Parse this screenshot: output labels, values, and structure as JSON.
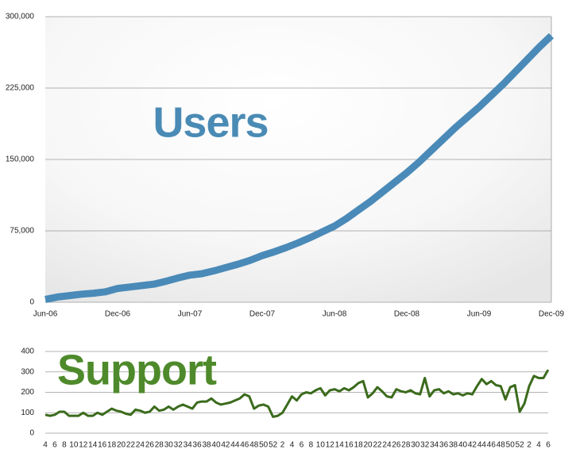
{
  "chart_data": [
    {
      "type": "line",
      "title": "Users",
      "categories": [
        "Jun-06",
        null,
        null,
        null,
        null,
        null,
        "Dec-06",
        null,
        null,
        null,
        null,
        null,
        "Jun-07",
        null,
        null,
        null,
        null,
        null,
        "Dec-07",
        null,
        null,
        null,
        null,
        null,
        "Jun-08",
        null,
        null,
        null,
        null,
        null,
        "Dec-08",
        null,
        null,
        null,
        null,
        null,
        "Jun-09",
        null,
        null,
        null,
        null,
        null,
        "Dec-09"
      ],
      "values": [
        3000,
        5500,
        7000,
        8500,
        9500,
        11000,
        14500,
        16000,
        17500,
        19000,
        22000,
        25500,
        28500,
        30000,
        33000,
        36500,
        40000,
        44000,
        49000,
        53000,
        57500,
        62500,
        68000,
        74000,
        80000,
        88000,
        97000,
        106000,
        116000,
        126000,
        136000,
        147000,
        159000,
        171000,
        183000,
        194000,
        205000,
        217000,
        229000,
        242000,
        255000,
        268000,
        280000
      ],
      "color": "#4a8ab8",
      "ylim": [
        0,
        300000
      ],
      "yticks": [
        0,
        {
          "value": 75000,
          "label": "75,000"
        },
        {
          "value": 150000,
          "label": "150,000"
        },
        {
          "value": 225000,
          "label": "225,000"
        },
        {
          "value": 300000,
          "label": "300,000"
        }
      ],
      "grid": true
    },
    {
      "type": "line",
      "title": "Support",
      "categories": [
        "4",
        null,
        "6",
        null,
        "8",
        null,
        "10",
        null,
        "12",
        null,
        "14",
        null,
        "16",
        null,
        "18",
        null,
        "20",
        null,
        "22",
        null,
        "24",
        null,
        "26",
        null,
        "28",
        null,
        "30",
        null,
        "32",
        null,
        "34",
        null,
        "36",
        null,
        "38",
        null,
        "40",
        null,
        "42",
        null,
        "44",
        null,
        "46",
        null,
        "48",
        null,
        "50",
        null,
        "52",
        null,
        "2",
        null,
        "4",
        null,
        "6",
        null,
        "8",
        null,
        "10",
        null,
        "12",
        null,
        "14",
        null,
        "16",
        null,
        "18",
        null,
        "20",
        null,
        "22",
        null,
        "24",
        null,
        "26",
        null,
        "28",
        null,
        "30",
        null,
        "32",
        null,
        "34",
        null,
        "36",
        null,
        "38",
        null,
        "40",
        null,
        "42",
        null,
        "44",
        null,
        "46",
        null,
        "48",
        null,
        "50",
        null,
        "52",
        null,
        "2",
        null,
        "4",
        null,
        "6"
      ],
      "values": [
        90,
        85,
        90,
        105,
        105,
        85,
        85,
        85,
        100,
        85,
        85,
        100,
        90,
        105,
        120,
        110,
        105,
        95,
        90,
        115,
        110,
        100,
        105,
        130,
        110,
        115,
        130,
        115,
        130,
        140,
        130,
        120,
        150,
        155,
        155,
        170,
        150,
        140,
        145,
        150,
        160,
        170,
        190,
        180,
        120,
        135,
        140,
        130,
        80,
        85,
        100,
        140,
        180,
        160,
        190,
        200,
        195,
        210,
        220,
        185,
        210,
        215,
        205,
        220,
        210,
        225,
        245,
        255,
        175,
        195,
        225,
        205,
        180,
        175,
        215,
        205,
        200,
        210,
        195,
        190,
        270,
        180,
        210,
        215,
        195,
        205,
        190,
        195,
        185,
        195,
        190,
        230,
        265,
        240,
        255,
        235,
        230,
        165,
        225,
        235,
        105,
        145,
        230,
        280,
        270,
        270,
        310
      ],
      "color": "#3b6b1c",
      "ylim": [
        0,
        400
      ],
      "yticks": [
        0,
        100,
        200,
        300,
        400
      ],
      "grid": true
    }
  ]
}
